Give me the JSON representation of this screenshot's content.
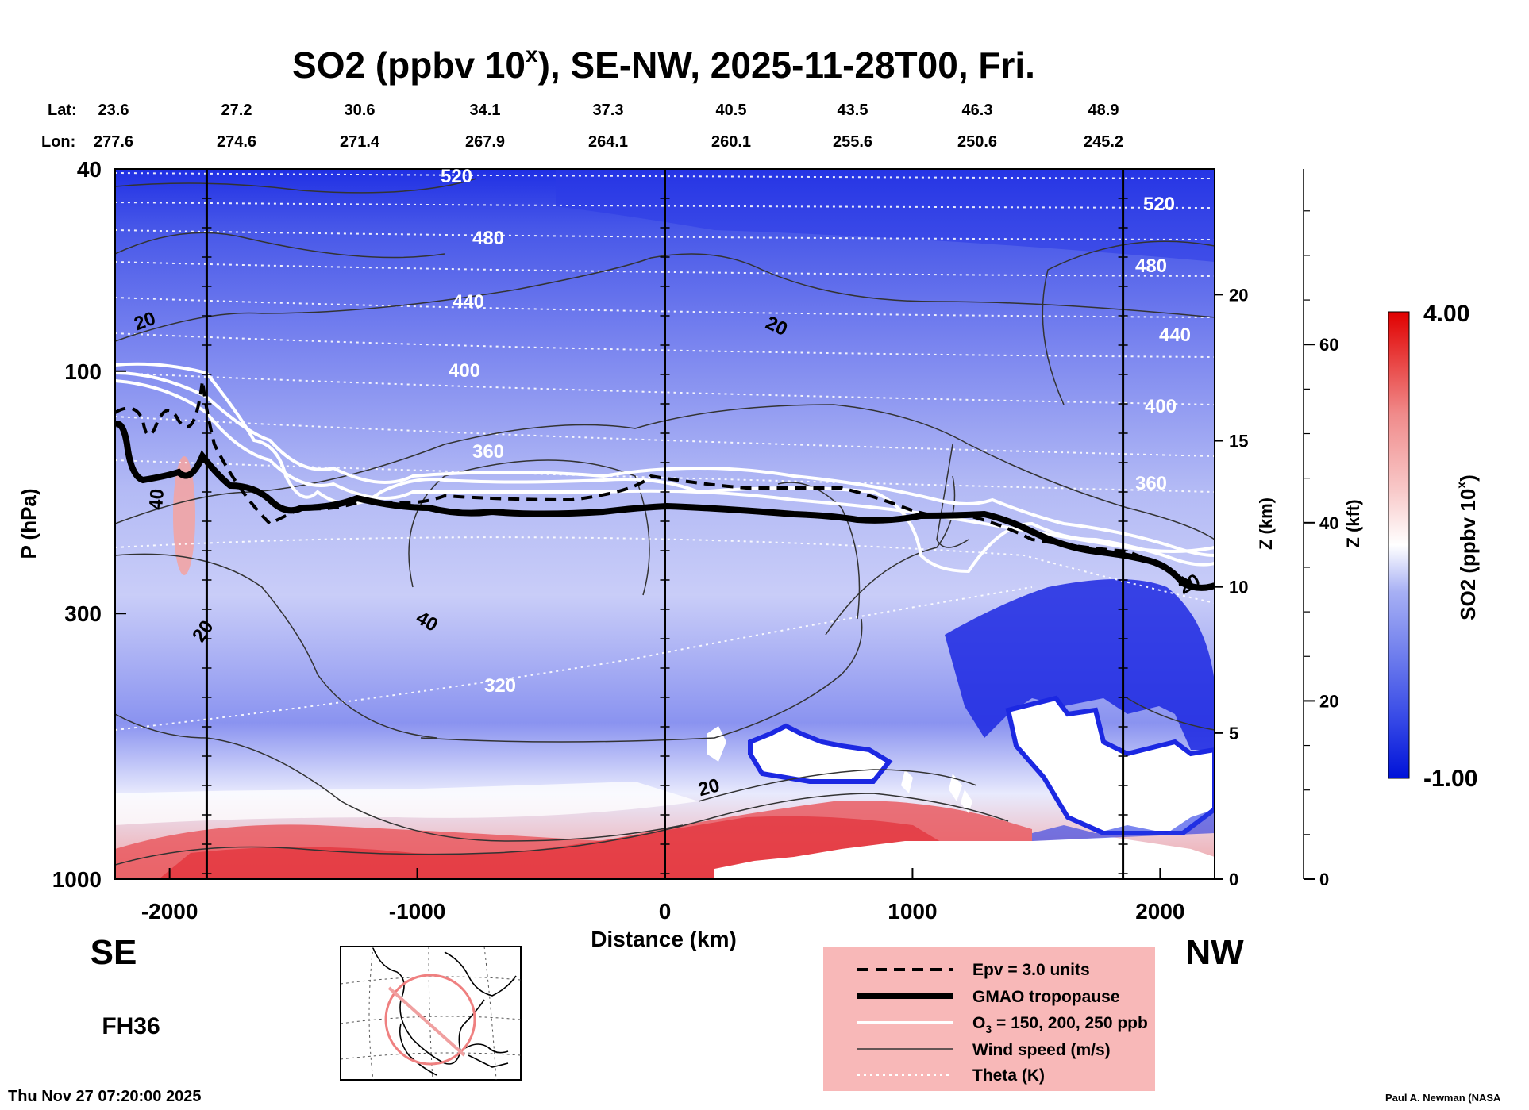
{
  "chart_data": {
    "type": "heatmap",
    "title_main": "SO2 (ppbv 10",
    "title_sup": "x",
    "title_rest": "), SE-NW, 2025-11-28T00, Fri.",
    "lat_label": "Lat:",
    "lon_label": "Lon:",
    "lat_ticks": [
      "23.6",
      "27.2",
      "30.6",
      "34.1",
      "37.3",
      "40.5",
      "43.5",
      "46.3",
      "48.9"
    ],
    "lon_ticks": [
      "277.6",
      "274.6",
      "271.4",
      "267.9",
      "264.1",
      "260.1",
      "255.6",
      "250.6",
      "245.2"
    ],
    "xlabel": "Distance (km)",
    "ylabel": "P (hPa)",
    "xlim": [
      -2220,
      2220
    ],
    "x_ticks": [
      -2000,
      -1000,
      0,
      1000,
      2000
    ],
    "x_tick_labels": [
      "-2000",
      "-1000",
      "0",
      "1000",
      "2000"
    ],
    "ylim": [
      40,
      1000
    ],
    "y_ticks": [
      40,
      100,
      300,
      1000
    ],
    "y_tick_labels": [
      "40",
      "100",
      "300",
      "1000"
    ],
    "z_km_label": "Z (km)",
    "z_km_ticks": [
      0,
      5,
      10,
      15,
      20
    ],
    "z_km_tick_labels": [
      "0",
      "5",
      "10",
      "15",
      "20"
    ],
    "z_kft_label": "Z (kft)",
    "z_kft_ticks": [
      0,
      20,
      40,
      60
    ],
    "z_kft_tick_labels": [
      "0",
      "20",
      "40",
      "60"
    ],
    "vertical_markers_km": [
      -1850,
      0,
      1850
    ],
    "left_end": "SE",
    "right_end": "NW",
    "forecast_hour": "FH36",
    "colorbar": {
      "label": "SO2 (ppbv 10",
      "label_sup": "x",
      "label_end": ")",
      "min": -1.0,
      "max": 4.0,
      "min_label": "-1.00",
      "max_label": "4.00",
      "colors": [
        "#0012d8",
        "#3346e6",
        "#6d7ced",
        "#a7b0f4",
        "#ffffff",
        "#f8c8c8",
        "#f08b8b",
        "#e8403f",
        "#e00000"
      ]
    },
    "theta_labels": [
      "520",
      "480",
      "440",
      "400",
      "360",
      "320"
    ],
    "theta_labels_right": [
      "520",
      "480",
      "440",
      "400",
      "360"
    ],
    "wind_labels": [
      "20",
      "20",
      "40",
      "40",
      "20",
      "20",
      "20"
    ],
    "legend": [
      {
        "key": "epv",
        "style": "dashed",
        "label": "Epv = 3.0 units"
      },
      {
        "key": "tropopause",
        "style": "thick",
        "label": "GMAO tropopause"
      },
      {
        "key": "o3",
        "style": "white",
        "label_pre": "O",
        "label_sub": "3",
        "label_post": " = 150, 200, 250 ppb"
      },
      {
        "key": "wind",
        "style": "thin",
        "label": "Wind speed (m/s)"
      },
      {
        "key": "theta",
        "style": "dotted",
        "label": "Theta (K)"
      }
    ],
    "timestamp": "Thu Nov 27 07:20:00 2025",
    "credit": "Paul A. Newman (NASA"
  }
}
